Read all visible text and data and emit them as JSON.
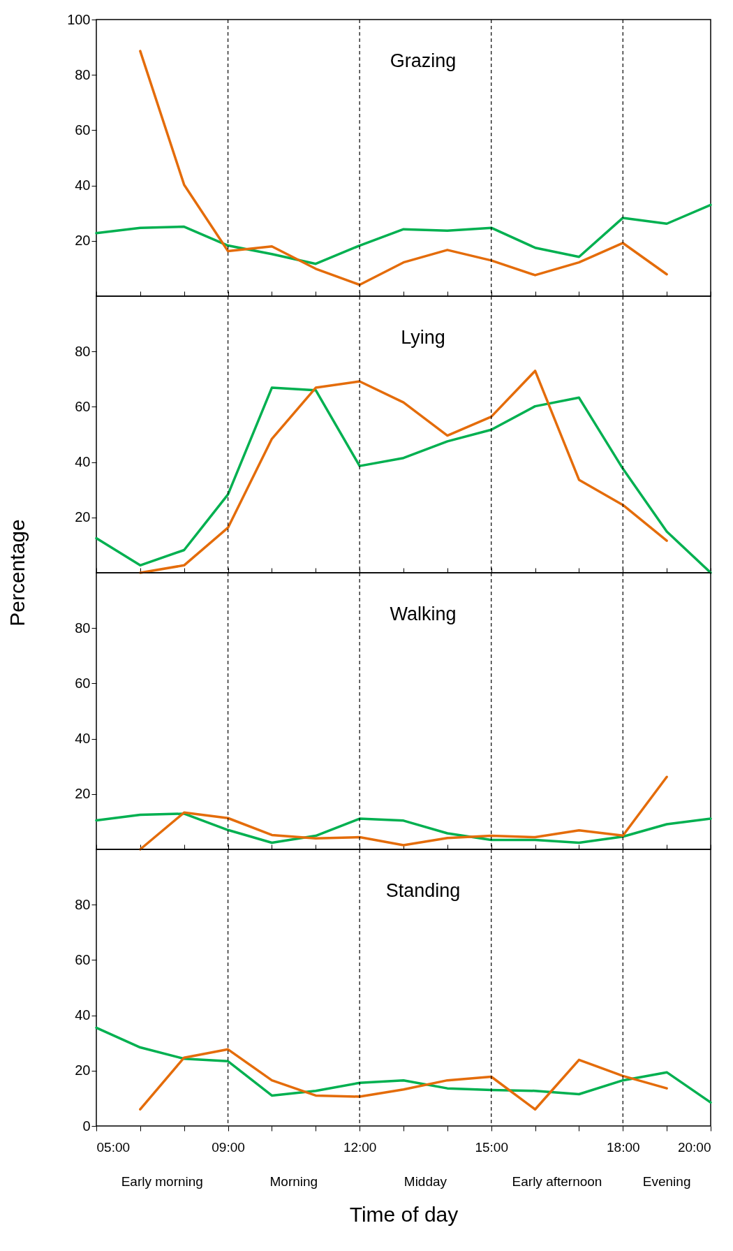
{
  "chart_data": [
    {
      "type": "line",
      "title": "Grazing",
      "categories": [
        "05:00",
        null,
        null,
        "09:00",
        null,
        null,
        "12:00",
        null,
        null,
        "15:00",
        null,
        null,
        "18:00",
        null,
        "20:00"
      ],
      "series": [
        {
          "color": "#00b050",
          "values": [
            22.8,
            24.7,
            25.1,
            18.3,
            15.2,
            11.7,
            18.3,
            24.2,
            23.7,
            24.7,
            17.5,
            14.2,
            28.3,
            26.2,
            33.0
          ]
        },
        {
          "color": "#e46c0a",
          "values": [
            null,
            88.6,
            40.3,
            16.3,
            18.0,
            9.9,
            4.1,
            12.2,
            16.7,
            12.9,
            7.6,
            12.2,
            19.2,
            7.9,
            null
          ]
        }
      ],
      "ylim": [
        0,
        100
      ],
      "yticks": [
        20,
        40,
        60,
        80,
        100
      ],
      "tick_labels": "y",
      "grid": false,
      "ref_lines": [
        {
          "axis": "x",
          "value": "09:00",
          "line_style": "dashed"
        },
        {
          "axis": "x",
          "value": "12:00",
          "line_style": "dashed"
        },
        {
          "axis": "x",
          "value": "15:00",
          "line_style": "dashed"
        },
        {
          "axis": "x",
          "value": "18:00",
          "line_style": "dashed"
        }
      ]
    },
    {
      "type": "line",
      "title": "Lying",
      "ylabel": "Percentage",
      "categories": [
        "05:00",
        null,
        null,
        "09:00",
        null,
        null,
        "12:00",
        null,
        null,
        "15:00",
        null,
        null,
        "18:00",
        null,
        "20:00"
      ],
      "series": [
        {
          "color": "#00b050",
          "values": [
            12.5,
            2.7,
            8.2,
            28.3,
            66.9,
            66.0,
            38.6,
            41.5,
            47.5,
            51.7,
            60.2,
            63.3,
            37.6,
            14.9,
            0
          ]
        },
        {
          "color": "#e46c0a",
          "values": [
            null,
            0,
            2.7,
            16.3,
            48.4,
            66.9,
            69.2,
            61.6,
            49.6,
            56.4,
            73.0,
            33.6,
            24.5,
            11.6,
            null
          ]
        }
      ],
      "ylim": [
        0,
        100
      ],
      "yticks": [
        20,
        40,
        60,
        80
      ],
      "tick_labels": "y",
      "grid": false,
      "ref_lines": [
        {
          "axis": "x",
          "value": "09:00",
          "line_style": "dashed"
        },
        {
          "axis": "x",
          "value": "12:00",
          "line_style": "dashed"
        },
        {
          "axis": "x",
          "value": "15:00",
          "line_style": "dashed"
        },
        {
          "axis": "x",
          "value": "18:00",
          "line_style": "dashed"
        }
      ]
    },
    {
      "type": "line",
      "title": "Walking",
      "categories": [
        "05:00",
        null,
        null,
        "09:00",
        null,
        null,
        "12:00",
        null,
        null,
        "15:00",
        null,
        null,
        "18:00",
        null,
        "20:00"
      ],
      "series": [
        {
          "color": "#00b050",
          "values": [
            10.5,
            12.5,
            12.9,
            7.0,
            2.4,
            4.9,
            11.1,
            10.4,
            5.8,
            3.4,
            3.4,
            2.4,
            4.6,
            9.1,
            11.1
          ]
        },
        {
          "color": "#e46c0a",
          "values": [
            null,
            0,
            13.3,
            11.3,
            5.2,
            4.0,
            4.4,
            1.5,
            4.1,
            4.9,
            4.4,
            6.9,
            5.0,
            26.2,
            null
          ]
        }
      ],
      "ylim": [
        0,
        100
      ],
      "yticks": [
        20,
        40,
        60,
        80
      ],
      "tick_labels": "y",
      "grid": false,
      "ref_lines": [
        {
          "axis": "x",
          "value": "09:00",
          "line_style": "dashed"
        },
        {
          "axis": "x",
          "value": "12:00",
          "line_style": "dashed"
        },
        {
          "axis": "x",
          "value": "15:00",
          "line_style": "dashed"
        },
        {
          "axis": "x",
          "value": "18:00",
          "line_style": "dashed"
        }
      ]
    },
    {
      "type": "line",
      "title": "Standing",
      "xlabel": "Time of day",
      "categories": [
        "05:00",
        null,
        null,
        "09:00",
        null,
        null,
        "12:00",
        null,
        null,
        "15:00",
        null,
        null,
        "18:00",
        null,
        "20:00"
      ],
      "series": [
        {
          "color": "#00b050",
          "values": [
            35.5,
            28.4,
            24.3,
            23.4,
            11.0,
            12.7,
            15.6,
            16.5,
            13.6,
            13.0,
            12.7,
            11.5,
            16.5,
            19.4,
            8.5
          ]
        },
        {
          "color": "#e46c0a",
          "values": [
            null,
            6.0,
            24.7,
            27.7,
            16.5,
            11.0,
            10.6,
            13.2,
            16.5,
            17.8,
            6.0,
            23.9,
            18.1,
            13.6,
            null
          ]
        }
      ],
      "ylim": [
        0,
        100
      ],
      "yticks": [
        0,
        20,
        40,
        60,
        80
      ],
      "grid": false,
      "ref_lines": [
        {
          "axis": "x",
          "value": "09:00",
          "line_style": "dashed"
        },
        {
          "axis": "x",
          "value": "12:00",
          "line_style": "dashed"
        },
        {
          "axis": "x",
          "value": "15:00",
          "line_style": "dashed"
        },
        {
          "axis": "x",
          "value": "18:00",
          "line_style": "dashed"
        }
      ],
      "annotations": [
        "Early morning",
        "Morning",
        "Midday",
        "Early afternoon",
        "Evening"
      ]
    }
  ]
}
